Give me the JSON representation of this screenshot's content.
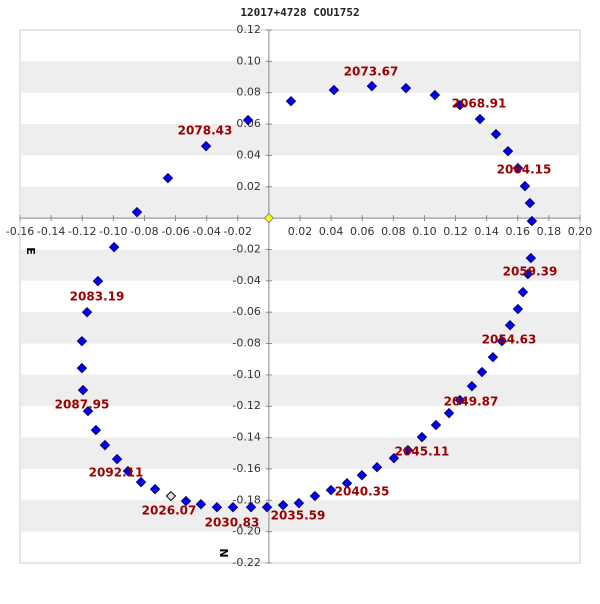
{
  "chart_data": {
    "type": "scatter",
    "title": "12017+4728 COU1752",
    "xlabel": "E",
    "ylabel": "N",
    "xlim": [
      -0.16,
      0.2
    ],
    "ylim": [
      -0.22,
      0.12
    ],
    "xticks": [
      -0.16,
      -0.14,
      -0.12,
      {
        "value": -0.1,
        "label": "-0.10"
      },
      -0.08,
      -0.06,
      -0.04,
      -0.02,
      0.02,
      0.04,
      0.06,
      0.08,
      {
        "value": 0.1,
        "label": "0.10"
      },
      0.12,
      0.14,
      0.16,
      0.18,
      {
        "value": 0.2,
        "label": "0.20"
      }
    ],
    "yticks": [
      0.12,
      {
        "value": 0.1,
        "label": "0.10"
      },
      0.08,
      0.06,
      0.04,
      0.02,
      -0.02,
      -0.04,
      -0.06,
      -0.08,
      {
        "value": -0.1,
        "label": "-0.10"
      },
      -0.12,
      -0.14,
      -0.16,
      -0.18,
      {
        "value": -0.2,
        "label": "-0.20"
      },
      -0.22
    ],
    "series": [
      {
        "color": "#0000ff",
        "x": [
          0.0142,
          0.0418,
          0.0662,
          0.0881,
          0.1067,
          0.1228,
          0.1357,
          0.146,
          0.1537,
          0.1601,
          0.1646,
          0.1678,
          0.1691,
          0.1684,
          0.1665,
          0.1633,
          0.1601,
          0.155,
          0.1498,
          0.144,
          0.137,
          0.1305,
          0.1228,
          0.1158,
          0.1074,
          0.0984,
          0.0894,
          0.0804,
          0.0695,
          0.0598,
          0.0502,
          0.0399,
          0.0296,
          0.0193,
          0.0091,
          -0.0012,
          -0.0115,
          -0.0231,
          -0.0334,
          -0.0437,
          -0.0533,
          -0.0732,
          -0.0822,
          -0.0906,
          -0.0976,
          -0.1054,
          -0.1112,
          -0.1163,
          -0.1195,
          -0.1202,
          -0.1202,
          -0.1169,
          -0.1099,
          -0.0995,
          -0.0848,
          -0.0649,
          -0.0404,
          -0.0134
        ],
        "y": [
          0.0746,
          0.0817,
          0.0842,
          0.0829,
          0.0785,
          0.0721,
          0.0632,
          0.0536,
          0.0427,
          0.0319,
          0.0204,
          0.0096,
          -0.0019,
          -0.0255,
          -0.0357,
          -0.0472,
          -0.058,
          -0.0683,
          -0.0785,
          -0.0887,
          -0.0982,
          -0.1072,
          -0.1161,
          -0.1244,
          -0.132,
          -0.1397,
          -0.148,
          -0.1531,
          -0.1589,
          -0.164,
          -0.1691,
          -0.1735,
          -0.1773,
          -0.1818,
          -0.1831,
          -0.1844,
          -0.1844,
          -0.1844,
          -0.1844,
          -0.1825,
          -0.1805,
          -0.1729,
          -0.1684,
          -0.1614,
          -0.1537,
          -0.1448,
          -0.1352,
          -0.1231,
          -0.1097,
          -0.0957,
          -0.0785,
          -0.06,
          -0.0402,
          -0.0185,
          0.0038,
          0.0255,
          0.0459,
          0.0625
        ]
      },
      {
        "color": "#dddddd",
        "x": [
          -0.063
        ],
        "y": [
          -0.1773
        ]
      },
      {
        "color": "#ffff00",
        "x": [
          0
        ],
        "y": [
          0
        ]
      }
    ],
    "annotations": [
      "2073.67",
      "2068.91",
      "2064.15",
      "2059.39",
      "2054.63",
      "2049.87",
      "2045.11",
      "2040.35",
      "2035.59",
      "2030.83",
      "2026.07",
      "2092.11",
      "2087.95",
      "2083.19",
      "2078.43"
    ],
    "bands": true
  }
}
